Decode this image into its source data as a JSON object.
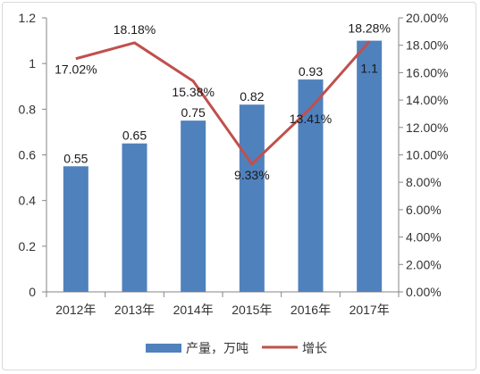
{
  "chart_data": {
    "type": "bar",
    "categories": [
      "2012年",
      "2013年",
      "2014年",
      "2015年",
      "2016年",
      "2017年"
    ],
    "series": [
      {
        "name": "产量，万吨",
        "type": "bar",
        "axis": "left",
        "values": [
          0.55,
          0.65,
          0.75,
          0.82,
          0.93,
          1.1
        ],
        "labels": [
          "0.55",
          "0.65",
          "0.75",
          "0.82",
          "0.93",
          "1.1"
        ],
        "color": "#4f81bd"
      },
      {
        "name": "增长",
        "type": "line",
        "axis": "right",
        "values": [
          17.02,
          18.18,
          15.38,
          9.33,
          13.41,
          18.28
        ],
        "labels": [
          "17.02%",
          "18.18%",
          "15.38%",
          "9.33%",
          "13.41%",
          "18.28%"
        ],
        "color": "#c0504d"
      }
    ],
    "left_axis": {
      "ylim": [
        0,
        1.2
      ],
      "ticks": [
        0,
        0.2,
        0.4,
        0.6,
        0.8,
        1,
        1.2
      ],
      "tick_labels": [
        "0",
        "0.2",
        "0.4",
        "0.6",
        "0.8",
        "1",
        "1.2"
      ]
    },
    "right_axis": {
      "ylim": [
        0,
        20
      ],
      "ticks": [
        0,
        2,
        4,
        6,
        8,
        10,
        12,
        14,
        16,
        18,
        20
      ],
      "tick_labels": [
        "0.00%",
        "2.00%",
        "4.00%",
        "6.00%",
        "8.00%",
        "10.00%",
        "12.00%",
        "14.00%",
        "16.00%",
        "18.00%",
        "20.00%"
      ]
    },
    "grid": false,
    "legend_position": "bottom"
  }
}
